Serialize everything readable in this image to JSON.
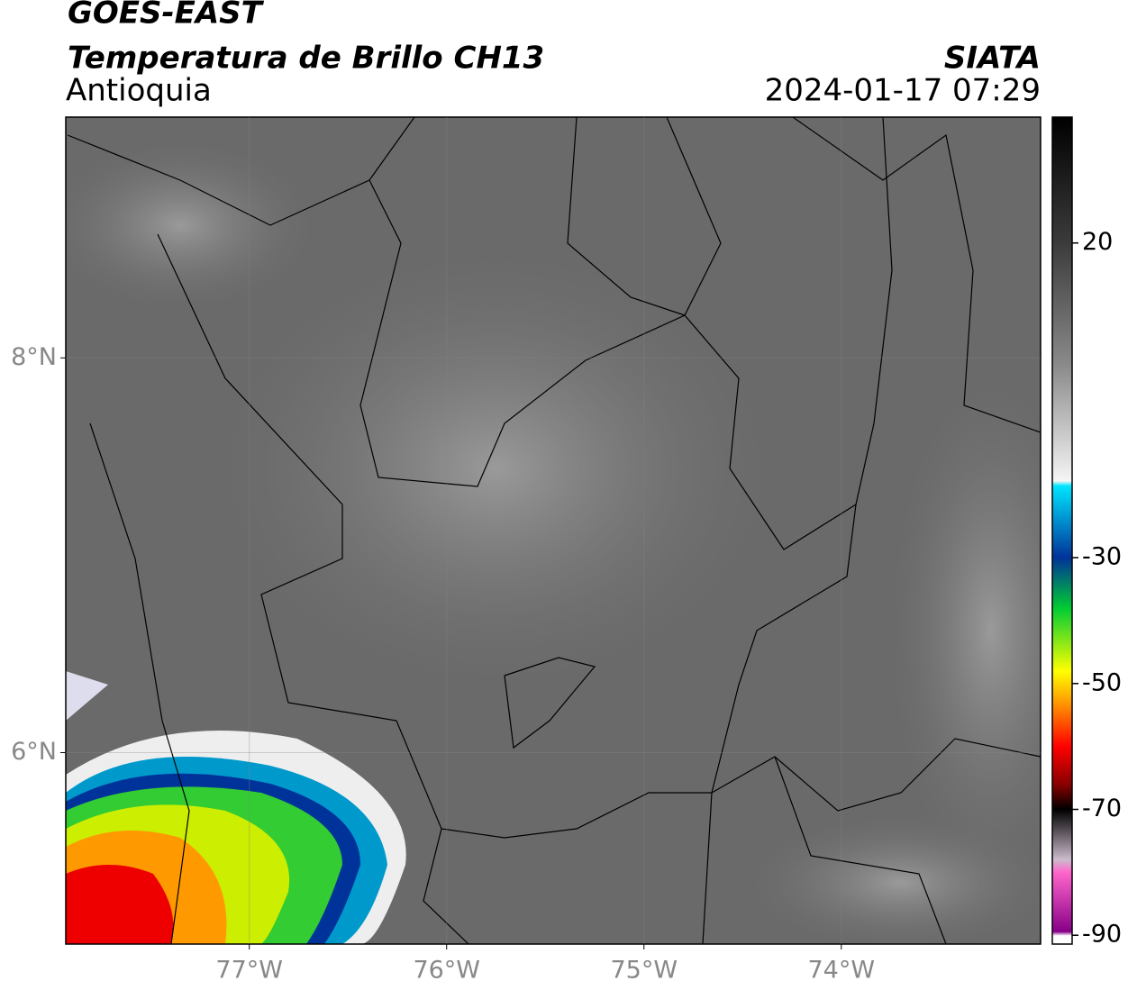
{
  "header": {
    "title": "GOES-EAST",
    "subtitle": "Temperatura de Brillo CH13",
    "region": "Antioquia",
    "source": "SIATA",
    "datetime": "2024-01-17 07:29"
  },
  "map": {
    "xlim": [
      -77.93,
      -72.99
    ],
    "ylim": [
      5.03,
      9.22
    ],
    "xticks": [
      {
        "value": -77,
        "label": "77°W"
      },
      {
        "value": -76,
        "label": "76°W"
      },
      {
        "value": -75,
        "label": "75°W"
      },
      {
        "value": -74,
        "label": "74°W"
      }
    ],
    "yticks": [
      {
        "value": 8,
        "label": "8°N"
      },
      {
        "value": 6,
        "label": "6°N"
      }
    ]
  },
  "colorbar": {
    "lim": [
      -91.4,
      40
    ],
    "ticks": [
      20,
      -30,
      -50,
      -70,
      -90
    ]
  }
}
